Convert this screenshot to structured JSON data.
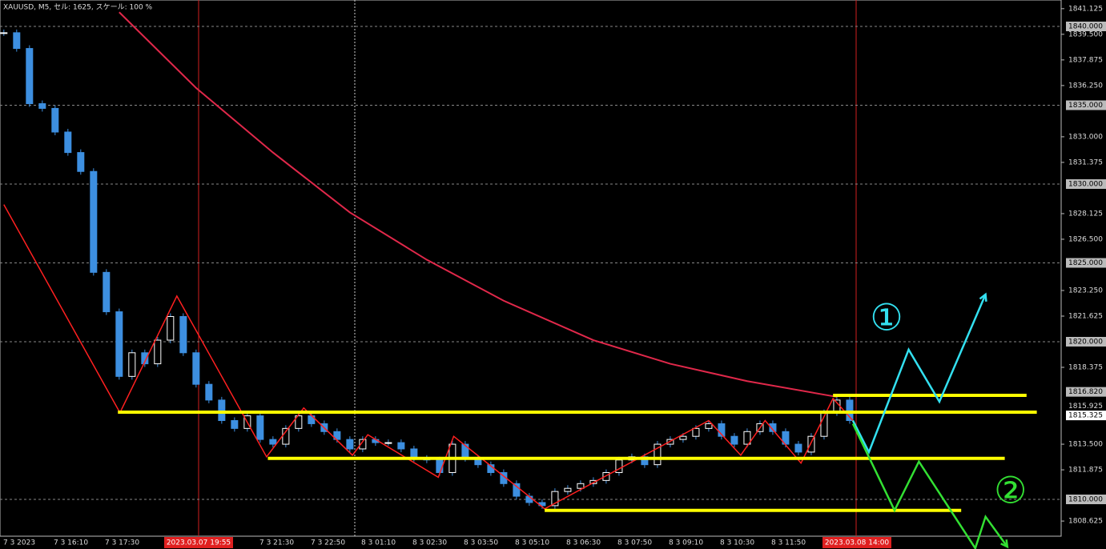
{
  "chart_data": {
    "type": "candlestick",
    "title": "XAUUSD, M5, セル: 1625, スケール: 100 %",
    "ylim": [
      1807.665,
      1841.675
    ],
    "xlim": [
      -0.3,
      82.5
    ],
    "yticks": [
      1841.125,
      {
        "value": 1839.5,
        "label": "1839.500"
      },
      1837.875,
      {
        "value": 1836.25,
        "label": "1836.250"
      },
      {
        "value": 1833,
        "label": "1833.000"
      },
      1831.375,
      1828.125,
      {
        "value": 1826.5,
        "label": "1826.500"
      },
      {
        "value": 1823.25,
        "label": "1823.250"
      },
      1821.625,
      1818.375,
      {
        "value": 1813.5,
        "label": "1813.500"
      },
      1811.875,
      1808.625
    ],
    "x_labels": [
      "7 3 2023",
      "7 3 16:10",
      "7 3 17:30",
      "7 3 21:30",
      "7 3 22:50",
      "8 3 01:10",
      "8 3 02:30",
      "8 3 03:50",
      "8 3 05:10",
      "8 3 06:30",
      "8 3 07:50",
      "8 3 09:10",
      "8 3 10:30",
      "8 3 11:50"
    ],
    "highlight_x_labels": [
      "2023.03.07 19:55",
      "2023.03.08 14:00"
    ],
    "candles": {
      "up_color": "#ffffff",
      "down_color": "#3d8fe0",
      "values": [
        1839.6,
        1838.6,
        1835.1,
        1834.8,
        1833.3,
        1832.0,
        1830.8,
        1824.4,
        1821.9,
        1817.8,
        1819.3,
        1818.6,
        1820.1,
        1821.6,
        1819.3,
        1817.3,
        1816.3,
        1815.0,
        1814.5,
        1815.3,
        1813.8,
        1813.5,
        1814.5,
        1815.3,
        1814.8,
        1814.3,
        1813.8,
        1813.2,
        1813.8,
        1813.6,
        1813.6,
        1813.2,
        1812.6,
        1812.5,
        1811.7,
        1813.5,
        1812.6,
        1812.2,
        1811.7,
        1811.0,
        1810.2,
        1809.8,
        1809.6,
        1810.5,
        1810.7,
        1811.0,
        1811.2,
        1811.7,
        1812.5,
        1812.7,
        1812.2,
        1813.5,
        1813.8,
        1814.0,
        1814.5,
        1814.8,
        1814.0,
        1813.5,
        1814.3,
        1814.8,
        1814.3,
        1813.5,
        1813.0,
        1814.0,
        1815.5,
        1816.3,
        1815.0
      ]
    },
    "ma": {
      "color": "#e0284a",
      "x": [
        9,
        15,
        21,
        27,
        33,
        39,
        46,
        52,
        58,
        65
      ],
      "values": [
        1840.9,
        1836.1,
        1832.0,
        1828.2,
        1825.2,
        1822.6,
        1820.1,
        1818.6,
        1817.5,
        1816.5
      ]
    },
    "zigzag": {
      "color": "#ff2020",
      "x": [
        0,
        9.06,
        13.5,
        20.5,
        23.4,
        27.2,
        28.4,
        33.9,
        35.1,
        42.2,
        55,
        57.5,
        59.4,
        62.2,
        64.7,
        66.25
      ],
      "values": [
        1828.7,
        1815.5,
        1822.9,
        1812.7,
        1815.8,
        1812.8,
        1814.1,
        1811.4,
        1814.0,
        1809.4,
        1815.0,
        1812.8,
        1815.0,
        1812.3,
        1816.4,
        1815.0
      ]
    },
    "support_lines": [
      {
        "value": 1815.53,
        "x": [
          8.9,
          80.6
        ]
      },
      {
        "value": 1816.6,
        "x": [
          64.7,
          79.8
        ]
      },
      {
        "value": 1812.6,
        "x": [
          20.6,
          78.1
        ]
      },
      {
        "value": 1809.3,
        "x": [
          42.2,
          74.7
        ]
      }
    ],
    "support_color": "#ffff00",
    "levels": [
      {
        "value": 1840,
        "label": "1840.000"
      },
      {
        "value": 1835,
        "label": "1835.000"
      },
      {
        "value": 1830,
        "label": "1830.000"
      },
      {
        "value": 1825,
        "label": "1825.000"
      },
      {
        "value": 1820,
        "label": "1820.000"
      },
      {
        "value": 1810,
        "label": "1810.000"
      }
    ],
    "price_labels": [
      {
        "value": 1816.82,
        "label": "1816.820"
      },
      {
        "value": 1815.925,
        "label": "1815.925"
      },
      {
        "value": 1815.325,
        "label": "1815.325"
      }
    ],
    "scenarios": [
      {
        "label": "①",
        "color": "#33e0f0",
        "x": [
          66.25,
          67.5,
          70.6,
          73.0,
          76.6
        ],
        "values": [
          1815.0,
          1813.0,
          1819.5,
          1816.2,
          1823.0
        ]
      },
      {
        "label": "②",
        "color": "#33e033",
        "x": [
          66.25,
          69.5,
          71.4,
          75.8,
          76.6,
          78.3
        ],
        "values": [
          1814.8,
          1809.3,
          1812.4,
          1806.9,
          1808.9,
          1807.0
        ]
      }
    ]
  }
}
